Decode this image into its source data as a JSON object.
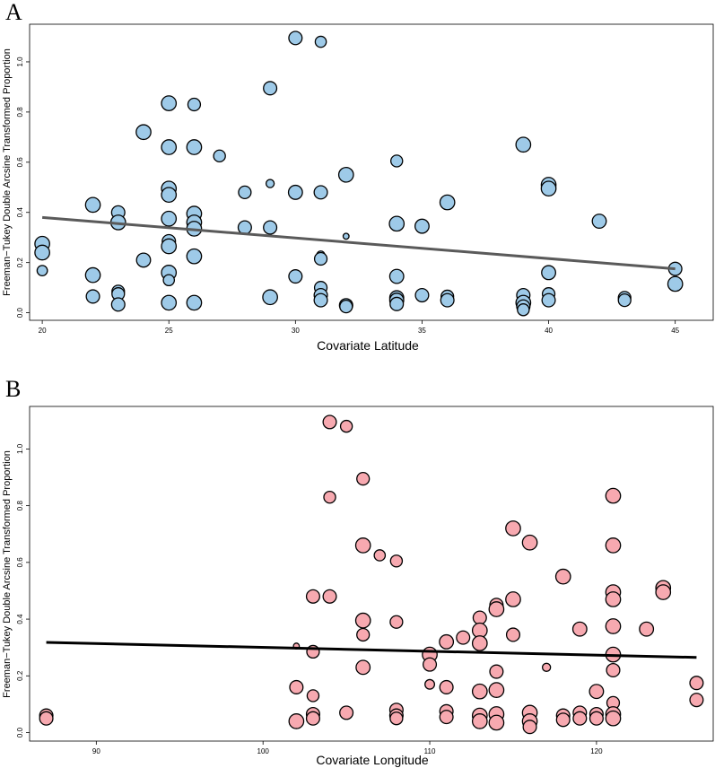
{
  "chart_data": [
    {
      "panel_label": "A",
      "type": "scatter",
      "xlabel": "Covariate Latitude",
      "ylabel": "Freeman−Tukey Double Arcsine Transformed Proportion",
      "xlim": [
        19.5,
        46.5
      ],
      "ylim": [
        -0.03,
        1.15
      ],
      "xticks": [
        20,
        25,
        30,
        35,
        40,
        45
      ],
      "yticks": [
        0.0,
        0.2,
        0.4,
        0.6,
        0.8,
        1.0
      ],
      "point_color": "#9ecae8",
      "line_color": "#5a5a5a",
      "regression": {
        "x": [
          20,
          45
        ],
        "y": [
          0.38,
          0.175
        ]
      },
      "points": [
        [
          20,
          0.275,
          1.0
        ],
        [
          20,
          0.24,
          1.0
        ],
        [
          20,
          0.168,
          0.7
        ],
        [
          22,
          0.43,
          1.0
        ],
        [
          22,
          0.15,
          1.0
        ],
        [
          22,
          0.065,
          0.9
        ],
        [
          23,
          0.4,
          0.9
        ],
        [
          23,
          0.36,
          1.0
        ],
        [
          23,
          0.085,
          0.85
        ],
        [
          23,
          0.075,
          0.85
        ],
        [
          23,
          0.033,
          0.9
        ],
        [
          24,
          0.72,
          1.0
        ],
        [
          24,
          0.21,
          0.95
        ],
        [
          25,
          0.835,
          1.0
        ],
        [
          25,
          0.66,
          1.0
        ],
        [
          25,
          0.495,
          1.0
        ],
        [
          25,
          0.47,
          1.0
        ],
        [
          25,
          0.375,
          1.0
        ],
        [
          25,
          0.285,
          0.9
        ],
        [
          25,
          0.265,
          1.0
        ],
        [
          25,
          0.16,
          1.0
        ],
        [
          25,
          0.13,
          0.75
        ],
        [
          25,
          0.04,
          1.0
        ],
        [
          26,
          0.83,
          0.85
        ],
        [
          26,
          0.66,
          1.0
        ],
        [
          26,
          0.395,
          1.0
        ],
        [
          26,
          0.36,
          1.0
        ],
        [
          26,
          0.335,
          1.0
        ],
        [
          26,
          0.225,
          1.0
        ],
        [
          26,
          0.04,
          1.0
        ],
        [
          27,
          0.625,
          0.8
        ],
        [
          28,
          0.48,
          0.85
        ],
        [
          28,
          0.34,
          0.9
        ],
        [
          29,
          0.895,
          0.9
        ],
        [
          29,
          0.515,
          0.55
        ],
        [
          29,
          0.34,
          0.9
        ],
        [
          29,
          0.062,
          1.0
        ],
        [
          30,
          1.095,
          0.9
        ],
        [
          30,
          0.48,
          0.95
        ],
        [
          30,
          0.145,
          0.9
        ],
        [
          31,
          1.08,
          0.75
        ],
        [
          31,
          0.48,
          0.9
        ],
        [
          31,
          0.23,
          0.55
        ],
        [
          31,
          0.215,
          0.85
        ],
        [
          31,
          0.1,
          0.85
        ],
        [
          31,
          0.07,
          0.9
        ],
        [
          31,
          0.05,
          0.9
        ],
        [
          32,
          0.55,
          1.0
        ],
        [
          32,
          0.305,
          0.4
        ],
        [
          32,
          0.03,
          0.9
        ],
        [
          32,
          0.025,
          0.85
        ],
        [
          34,
          0.605,
          0.8
        ],
        [
          34,
          0.355,
          1.0
        ],
        [
          34,
          0.145,
          0.95
        ],
        [
          34,
          0.06,
          0.95
        ],
        [
          34,
          0.05,
          0.95
        ],
        [
          34,
          0.035,
          0.9
        ],
        [
          35,
          0.345,
          0.95
        ],
        [
          35,
          0.07,
          0.9
        ],
        [
          36,
          0.44,
          1.0
        ],
        [
          36,
          0.065,
          0.85
        ],
        [
          36,
          0.05,
          0.9
        ],
        [
          39,
          0.67,
          1.0
        ],
        [
          39,
          0.07,
          0.9
        ],
        [
          39,
          0.04,
          1.0
        ],
        [
          39,
          0.025,
          0.9
        ],
        [
          39,
          0.012,
          0.8
        ],
        [
          40,
          0.51,
          1.0
        ],
        [
          40,
          0.495,
          1.0
        ],
        [
          40,
          0.16,
          0.95
        ],
        [
          40,
          0.075,
          0.85
        ],
        [
          40,
          0.05,
          0.9
        ],
        [
          42,
          0.365,
          0.95
        ],
        [
          43,
          0.06,
          0.85
        ],
        [
          43,
          0.05,
          0.85
        ],
        [
          45,
          0.175,
          0.9
        ],
        [
          45,
          0.115,
          1.0
        ]
      ]
    },
    {
      "panel_label": "B",
      "type": "scatter",
      "xlabel": "Covariate Longitude",
      "ylabel": "Freeman−Tukey Double Arcsine Transformed Proportion",
      "xlim": [
        86,
        127
      ],
      "ylim": [
        -0.03,
        1.15
      ],
      "xticks": [
        90,
        100,
        110,
        120
      ],
      "yticks": [
        0.0,
        0.2,
        0.4,
        0.6,
        0.8,
        1.0
      ],
      "point_color": "#f7a9b0",
      "line_color": "#000000",
      "regression": {
        "x": [
          87,
          126
        ],
        "y": [
          0.318,
          0.265
        ]
      },
      "points": [
        [
          87,
          0.06,
          0.9
        ],
        [
          87,
          0.05,
          0.9
        ],
        [
          102,
          0.305,
          0.4
        ],
        [
          102,
          0.16,
          0.9
        ],
        [
          102,
          0.04,
          1.0
        ],
        [
          103,
          0.48,
          0.9
        ],
        [
          103,
          0.285,
          0.85
        ],
        [
          103,
          0.13,
          0.8
        ],
        [
          103,
          0.065,
          0.9
        ],
        [
          103,
          0.05,
          0.9
        ],
        [
          104,
          1.095,
          0.9
        ],
        [
          104,
          0.83,
          0.8
        ],
        [
          104,
          0.48,
          0.9
        ],
        [
          105,
          1.08,
          0.8
        ],
        [
          105,
          0.07,
          0.9
        ],
        [
          106,
          0.895,
          0.85
        ],
        [
          106,
          0.66,
          1.0
        ],
        [
          106,
          0.395,
          1.0
        ],
        [
          106,
          0.345,
          0.85
        ],
        [
          106,
          0.23,
          0.95
        ],
        [
          107,
          0.625,
          0.75
        ],
        [
          108,
          0.605,
          0.8
        ],
        [
          108,
          0.39,
          0.85
        ],
        [
          108,
          0.08,
          0.9
        ],
        [
          108,
          0.06,
          0.9
        ],
        [
          108,
          0.05,
          0.85
        ],
        [
          110,
          0.275,
          1.0
        ],
        [
          110,
          0.24,
          0.9
        ],
        [
          110,
          0.17,
          0.65
        ],
        [
          111,
          0.32,
          0.95
        ],
        [
          111,
          0.16,
          0.9
        ],
        [
          111,
          0.075,
          0.9
        ],
        [
          111,
          0.055,
          0.9
        ],
        [
          112,
          0.335,
          0.9
        ],
        [
          113,
          0.405,
          0.9
        ],
        [
          113,
          0.36,
          1.0
        ],
        [
          113,
          0.315,
          1.0
        ],
        [
          113,
          0.145,
          1.0
        ],
        [
          113,
          0.06,
          1.0
        ],
        [
          113,
          0.04,
          1.0
        ],
        [
          114,
          0.45,
          0.9
        ],
        [
          114,
          0.435,
          1.0
        ],
        [
          114,
          0.215,
          0.9
        ],
        [
          114,
          0.15,
          1.0
        ],
        [
          114,
          0.065,
          1.0
        ],
        [
          114,
          0.035,
          1.0
        ],
        [
          115,
          0.72,
          1.0
        ],
        [
          115,
          0.47,
          1.0
        ],
        [
          115,
          0.345,
          0.9
        ],
        [
          116,
          0.67,
          1.0
        ],
        [
          116,
          0.07,
          1.0
        ],
        [
          116,
          0.04,
          1.0
        ],
        [
          116,
          0.02,
          0.9
        ],
        [
          117,
          0.23,
          0.55
        ],
        [
          118,
          0.55,
          1.0
        ],
        [
          118,
          0.06,
          0.9
        ],
        [
          118,
          0.045,
          0.9
        ],
        [
          119,
          0.365,
          0.95
        ],
        [
          119,
          0.07,
          0.9
        ],
        [
          119,
          0.05,
          0.9
        ],
        [
          120,
          0.145,
          0.95
        ],
        [
          120,
          0.065,
          0.9
        ],
        [
          120,
          0.05,
          0.9
        ],
        [
          121,
          0.835,
          1.0
        ],
        [
          121,
          0.66,
          1.0
        ],
        [
          121,
          0.495,
          1.0
        ],
        [
          121,
          0.47,
          1.0
        ],
        [
          121,
          0.375,
          1.0
        ],
        [
          121,
          0.275,
          1.0
        ],
        [
          121,
          0.22,
          0.9
        ],
        [
          121,
          0.105,
          0.85
        ],
        [
          121,
          0.065,
          1.0
        ],
        [
          121,
          0.05,
          1.0
        ],
        [
          123,
          0.365,
          0.95
        ],
        [
          124,
          0.51,
          1.0
        ],
        [
          124,
          0.495,
          1.0
        ],
        [
          126,
          0.175,
          0.9
        ],
        [
          126,
          0.115,
          0.9
        ]
      ]
    }
  ]
}
